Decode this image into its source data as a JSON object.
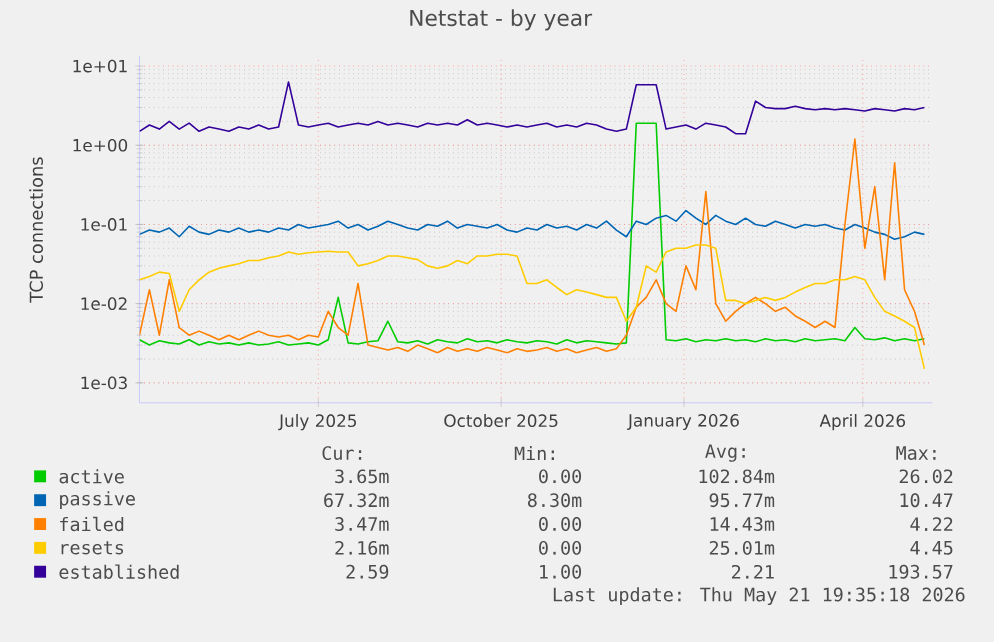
{
  "chart_data": {
    "type": "line",
    "title": "Netstat - by year",
    "ylabel": "TCP connections",
    "log": true,
    "grid": true,
    "legend": "bottom",
    "xlim": [
      "2025-04-02",
      "2026-05-06"
    ],
    "xticks": [
      {
        "value": "2025-07-01",
        "label": "July 2025"
      },
      {
        "value": "2025-10-01",
        "label": "October 2025"
      },
      {
        "value": "2026-01-01",
        "label": "January 2026"
      },
      {
        "value": "2026-04-01",
        "label": "April 2026"
      }
    ],
    "ylim": [
      0.00056,
      13.3
    ],
    "yticks": [
      {
        "value": 0.001,
        "label": "1e-03"
      },
      {
        "value": 0.01,
        "label": "1e-02"
      },
      {
        "value": 0.1,
        "label": "1e-01"
      },
      {
        "value": 1,
        "label": "1e+00"
      },
      {
        "value": 10,
        "label": "1e+01"
      }
    ],
    "x": [
      "2025-04-02",
      "2025-04-07",
      "2025-04-12",
      "2025-04-17",
      "2025-04-22",
      "2025-04-27",
      "2025-05-02",
      "2025-05-07",
      "2025-05-12",
      "2025-05-17",
      "2025-05-22",
      "2025-05-27",
      "2025-06-01",
      "2025-06-06",
      "2025-06-11",
      "2025-06-16",
      "2025-06-21",
      "2025-06-26",
      "2025-07-01",
      "2025-07-06",
      "2025-07-11",
      "2025-07-16",
      "2025-07-21",
      "2025-07-26",
      "2025-07-31",
      "2025-08-05",
      "2025-08-10",
      "2025-08-15",
      "2025-08-20",
      "2025-08-25",
      "2025-08-30",
      "2025-09-04",
      "2025-09-09",
      "2025-09-14",
      "2025-09-19",
      "2025-09-24",
      "2025-09-29",
      "2025-10-04",
      "2025-10-09",
      "2025-10-14",
      "2025-10-19",
      "2025-10-24",
      "2025-10-29",
      "2025-11-03",
      "2025-11-08",
      "2025-11-13",
      "2025-11-18",
      "2025-11-23",
      "2025-11-28",
      "2025-12-03",
      "2025-12-08",
      "2025-12-13",
      "2025-12-18",
      "2025-12-23",
      "2025-12-28",
      "2026-01-02",
      "2026-01-07",
      "2026-01-12",
      "2026-01-17",
      "2026-01-22",
      "2026-01-27",
      "2026-02-01",
      "2026-02-06",
      "2026-02-11",
      "2026-02-16",
      "2026-02-21",
      "2026-02-26",
      "2026-03-03",
      "2026-03-08",
      "2026-03-13",
      "2026-03-18",
      "2026-03-23",
      "2026-03-28",
      "2026-04-02",
      "2026-04-07",
      "2026-04-12",
      "2026-04-17",
      "2026-04-22",
      "2026-04-27",
      "2026-05-02"
    ],
    "series": [
      {
        "name": "active",
        "color": "#00cc00",
        "values": [
          0.0035,
          0.003,
          0.0034,
          0.0032,
          0.0031,
          0.0035,
          0.003,
          0.0033,
          0.0031,
          0.0032,
          0.003,
          0.0032,
          0.003,
          0.0031,
          0.0033,
          0.003,
          0.0031,
          0.0032,
          0.003,
          0.0035,
          0.012,
          0.0032,
          0.0031,
          0.0033,
          0.0034,
          0.006,
          0.0033,
          0.0032,
          0.0034,
          0.0031,
          0.0035,
          0.0033,
          0.0032,
          0.0036,
          0.0033,
          0.0034,
          0.0032,
          0.0035,
          0.0033,
          0.0032,
          0.0034,
          0.0033,
          0.0031,
          0.0035,
          0.0032,
          0.0034,
          0.0033,
          0.0032,
          0.0031,
          0.0032,
          1.9,
          1.9,
          1.9,
          0.0035,
          0.0034,
          0.0036,
          0.0033,
          0.0035,
          0.0034,
          0.0036,
          0.0034,
          0.0035,
          0.0033,
          0.0036,
          0.0034,
          0.0035,
          0.0033,
          0.0036,
          0.0034,
          0.0035,
          0.0036,
          0.0034,
          0.005,
          0.0036,
          0.0035,
          0.0037,
          0.0034,
          0.0036,
          0.0034,
          0.0036
        ]
      },
      {
        "name": "passive",
        "color": "#0066b3",
        "values": [
          0.075,
          0.085,
          0.08,
          0.09,
          0.07,
          0.095,
          0.08,
          0.075,
          0.085,
          0.08,
          0.09,
          0.08,
          0.085,
          0.08,
          0.09,
          0.085,
          0.1,
          0.09,
          0.095,
          0.1,
          0.11,
          0.09,
          0.1,
          0.085,
          0.095,
          0.11,
          0.1,
          0.09,
          0.085,
          0.1,
          0.095,
          0.11,
          0.09,
          0.1,
          0.095,
          0.09,
          0.1,
          0.085,
          0.08,
          0.09,
          0.085,
          0.1,
          0.09,
          0.095,
          0.085,
          0.1,
          0.09,
          0.11,
          0.085,
          0.07,
          0.11,
          0.1,
          0.12,
          0.13,
          0.11,
          0.15,
          0.12,
          0.1,
          0.13,
          0.11,
          0.1,
          0.12,
          0.1,
          0.095,
          0.11,
          0.1,
          0.09,
          0.1,
          0.095,
          0.1,
          0.09,
          0.085,
          0.1,
          0.09,
          0.08,
          0.075,
          0.065,
          0.07,
          0.08,
          0.075
        ]
      },
      {
        "name": "failed",
        "color": "#ff8000",
        "values": [
          0.004,
          0.015,
          0.004,
          0.02,
          0.005,
          0.004,
          0.0045,
          0.004,
          0.0035,
          0.004,
          0.0035,
          0.004,
          0.0045,
          0.004,
          0.0038,
          0.004,
          0.0035,
          0.004,
          0.0038,
          0.008,
          0.005,
          0.004,
          0.018,
          0.003,
          0.0028,
          0.0026,
          0.0028,
          0.0025,
          0.003,
          0.0027,
          0.0024,
          0.0028,
          0.0025,
          0.0027,
          0.0025,
          0.0028,
          0.0026,
          0.0024,
          0.0027,
          0.0025,
          0.0026,
          0.0028,
          0.0025,
          0.0027,
          0.0024,
          0.0026,
          0.0028,
          0.0025,
          0.0027,
          0.004,
          0.009,
          0.012,
          0.02,
          0.01,
          0.008,
          0.03,
          0.015,
          0.26,
          0.01,
          0.006,
          0.008,
          0.01,
          0.012,
          0.01,
          0.008,
          0.009,
          0.007,
          0.006,
          0.005,
          0.006,
          0.005,
          0.1,
          1.2,
          0.05,
          0.3,
          0.02,
          0.6,
          0.015,
          0.008,
          0.003
        ]
      },
      {
        "name": "resets",
        "color": "#ffcc00",
        "values": [
          0.02,
          0.022,
          0.025,
          0.024,
          0.008,
          0.015,
          0.02,
          0.025,
          0.028,
          0.03,
          0.032,
          0.035,
          0.035,
          0.038,
          0.04,
          0.045,
          0.042,
          0.044,
          0.045,
          0.046,
          0.045,
          0.045,
          0.03,
          0.032,
          0.035,
          0.04,
          0.04,
          0.038,
          0.036,
          0.03,
          0.028,
          0.03,
          0.035,
          0.032,
          0.04,
          0.04,
          0.042,
          0.042,
          0.04,
          0.018,
          0.018,
          0.02,
          0.016,
          0.013,
          0.015,
          0.014,
          0.013,
          0.012,
          0.012,
          0.006,
          0.009,
          0.03,
          0.025,
          0.045,
          0.05,
          0.05,
          0.055,
          0.055,
          0.05,
          0.011,
          0.011,
          0.01,
          0.011,
          0.012,
          0.011,
          0.012,
          0.014,
          0.016,
          0.018,
          0.018,
          0.02,
          0.02,
          0.022,
          0.02,
          0.012,
          0.008,
          0.007,
          0.006,
          0.005,
          0.0015
        ]
      },
      {
        "name": "established",
        "color": "#330099",
        "values": [
          1.5,
          1.8,
          1.6,
          2.0,
          1.6,
          1.9,
          1.5,
          1.7,
          1.6,
          1.5,
          1.7,
          1.6,
          1.8,
          1.6,
          1.7,
          6.3,
          1.8,
          1.7,
          1.8,
          1.9,
          1.7,
          1.8,
          1.9,
          1.8,
          2.0,
          1.8,
          1.9,
          1.8,
          1.7,
          1.9,
          1.8,
          1.9,
          1.8,
          2.1,
          1.8,
          1.9,
          1.8,
          1.7,
          1.8,
          1.7,
          1.8,
          1.9,
          1.7,
          1.8,
          1.7,
          1.9,
          1.8,
          1.6,
          1.5,
          1.6,
          5.8,
          5.8,
          5.8,
          1.6,
          1.7,
          1.8,
          1.6,
          1.9,
          1.8,
          1.7,
          1.4,
          1.4,
          3.6,
          3.0,
          2.9,
          2.9,
          3.1,
          2.9,
          2.8,
          2.9,
          2.8,
          2.9,
          2.8,
          2.7,
          2.9,
          2.8,
          2.7,
          2.9,
          2.8,
          3.0
        ]
      }
    ],
    "annotations": [
      "Cur:",
      "Min:",
      "Avg:",
      "Max:",
      "3.65m",
      "0.00",
      "102.84m",
      "26.02",
      "67.32m",
      "8.30m",
      "95.77m",
      "10.47",
      "3.47m",
      "0.00",
      "14.43m",
      "4.22",
      "2.16m",
      "0.00",
      "25.01m",
      "4.45",
      "2.59",
      "1.00",
      "2.21",
      "193.57",
      "Last update: Thu May 21 19:35:18 2026"
    ]
  }
}
